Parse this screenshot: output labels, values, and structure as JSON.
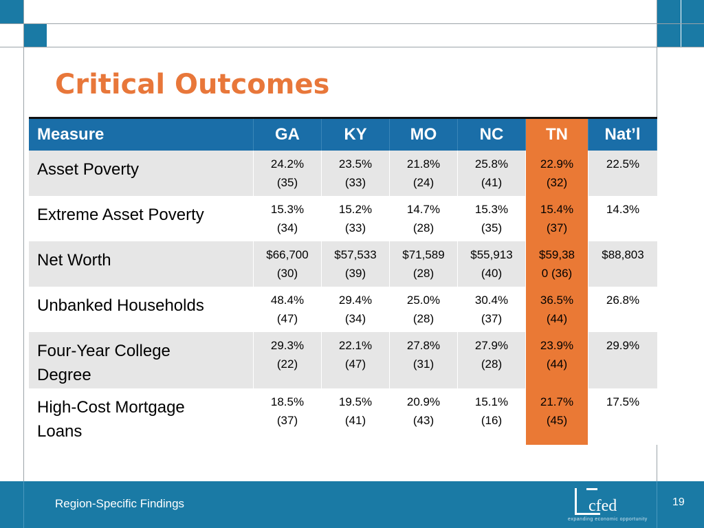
{
  "slide": {
    "title": "Critical Outcomes",
    "footer_text": "Region-Specific Findings",
    "page_number": "19"
  },
  "logo": {
    "name": "cfed",
    "tagline": "expanding economic opportunity"
  },
  "colors": {
    "title": "#e8773a",
    "header_bg": "#1a6ea8",
    "highlight": "#ea7935",
    "footer_bg": "#1a7aa5",
    "row_shade": "#e6e6e6"
  },
  "table": {
    "headers": [
      "Measure",
      "GA",
      "KY",
      "MO",
      "NC",
      "TN",
      "Nat’l"
    ],
    "highlight_column": "TN",
    "rows": [
      {
        "measure": [
          "Asset Poverty"
        ],
        "values": [
          [
            "24.2%",
            "(35)"
          ],
          [
            "23.5%",
            "(33)"
          ],
          [
            "21.8%",
            "(24)"
          ],
          [
            "25.8%",
            "(41)"
          ],
          [
            "22.9%",
            "(32)"
          ],
          [
            "22.5%"
          ]
        ]
      },
      {
        "measure": [
          "Extreme Asset Poverty"
        ],
        "values": [
          [
            "15.3%",
            "(34)"
          ],
          [
            "15.2%",
            "(33)"
          ],
          [
            "14.7%",
            "(28)"
          ],
          [
            "15.3%",
            "(35)"
          ],
          [
            "15.4%",
            "(37)"
          ],
          [
            "14.3%"
          ]
        ]
      },
      {
        "measure": [
          "Net Worth"
        ],
        "values": [
          [
            "$66,700",
            "(30)"
          ],
          [
            "$57,533",
            "(39)"
          ],
          [
            "$71,589",
            "(28)"
          ],
          [
            "$55,913",
            "(40)"
          ],
          [
            "$59,38",
            "0 (36)"
          ],
          [
            "$88,803"
          ]
        ]
      },
      {
        "measure": [
          "Unbanked Households"
        ],
        "values": [
          [
            "48.4%",
            "(47)"
          ],
          [
            "29.4%",
            "(34)"
          ],
          [
            "25.0%",
            "(28)"
          ],
          [
            "30.4%",
            "(37)"
          ],
          [
            "36.5%",
            "(44)"
          ],
          [
            "26.8%"
          ]
        ]
      },
      {
        "measure": [
          "Four-Year College",
          "Degree"
        ],
        "values": [
          [
            "29.3%",
            "(22)"
          ],
          [
            "22.1%",
            "(47)"
          ],
          [
            "27.8%",
            "(31)"
          ],
          [
            "27.9%",
            "(28)"
          ],
          [
            "23.9%",
            "(44)"
          ],
          [
            "29.9%"
          ]
        ]
      },
      {
        "measure": [
          "High-Cost Mortgage",
          "Loans"
        ],
        "values": [
          [
            "18.5%",
            "(37)"
          ],
          [
            "19.5%",
            "(41)"
          ],
          [
            "20.9%",
            "(43)"
          ],
          [
            "15.1%",
            "(16)"
          ],
          [
            "21.7%",
            "(45)"
          ],
          [
            "17.5%"
          ]
        ]
      }
    ]
  }
}
